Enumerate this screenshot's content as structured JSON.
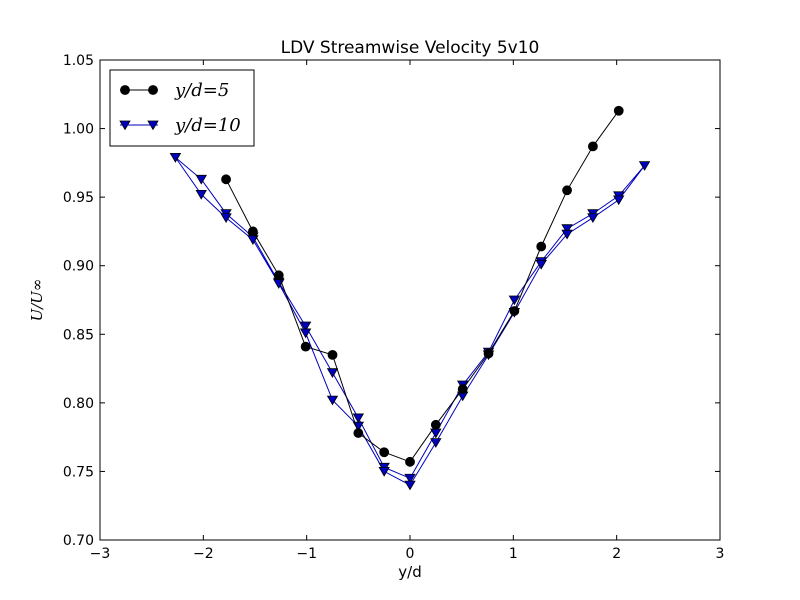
{
  "chart_data": {
    "type": "line",
    "title": "LDV Streamwise Velocity 5v10",
    "xlabel": "y/d",
    "ylabel": "U/U∞",
    "xlim": [
      -3,
      3
    ],
    "ylim": [
      0.7,
      1.05
    ],
    "xticks": [
      -3,
      -2,
      -1,
      0,
      1,
      2,
      3
    ],
    "xtick_labels": [
      "−3",
      "−2",
      "−1",
      "0",
      "1",
      "2",
      "3"
    ],
    "yticks": [
      0.7,
      0.75,
      0.8,
      0.85,
      0.9,
      0.95,
      1.0,
      1.05
    ],
    "ytick_labels": [
      "0.70",
      "0.75",
      "0.80",
      "0.85",
      "0.90",
      "0.95",
      "1.00",
      "1.05"
    ],
    "grid": false,
    "legend_position": "top-left",
    "series": [
      {
        "name": "y/d=5",
        "color": "#000000",
        "marker": "circle",
        "points": [
          [
            -1.78,
            0.963
          ],
          [
            -1.52,
            0.925
          ],
          [
            -1.27,
            0.893
          ],
          [
            -1.01,
            0.841
          ],
          [
            -0.75,
            0.835
          ],
          [
            -0.5,
            0.778
          ],
          [
            -0.25,
            0.764
          ],
          [
            0.0,
            0.757
          ],
          [
            0.25,
            0.784
          ],
          [
            0.51,
            0.81
          ],
          [
            0.76,
            0.836
          ],
          [
            1.01,
            0.867
          ],
          [
            1.27,
            0.914
          ],
          [
            1.52,
            0.955
          ],
          [
            1.77,
            0.987
          ],
          [
            2.02,
            1.013
          ]
        ]
      },
      {
        "name": "y/d=10",
        "color": "#0000bf",
        "marker": "triangle-down",
        "points": [
          [
            -2.27,
            0.979
          ],
          [
            -2.02,
            0.963
          ],
          [
            -1.78,
            0.938
          ],
          [
            -1.52,
            0.921
          ],
          [
            -1.27,
            0.888
          ],
          [
            -1.01,
            0.856
          ],
          [
            -0.75,
            0.822
          ],
          [
            -0.5,
            0.789
          ],
          [
            -0.25,
            0.753
          ],
          [
            0.0,
            0.745
          ],
          [
            0.25,
            0.778
          ],
          [
            0.51,
            0.813
          ],
          [
            0.76,
            0.837
          ],
          [
            1.01,
            0.875
          ],
          [
            1.27,
            0.903
          ],
          [
            1.52,
            0.927
          ],
          [
            1.77,
            0.938
          ],
          [
            2.02,
            0.951
          ],
          [
            2.27,
            0.973
          ],
          [
            2.02,
            0.948
          ],
          [
            1.77,
            0.935
          ],
          [
            1.52,
            0.923
          ],
          [
            1.27,
            0.901
          ],
          [
            1.01,
            0.866
          ],
          [
            0.76,
            0.835
          ],
          [
            0.51,
            0.805
          ],
          [
            0.25,
            0.771
          ],
          [
            0.0,
            0.74
          ],
          [
            -0.25,
            0.75
          ],
          [
            -0.5,
            0.783
          ],
          [
            -0.75,
            0.802
          ],
          [
            -1.01,
            0.851
          ],
          [
            -1.27,
            0.887
          ],
          [
            -1.52,
            0.919
          ],
          [
            -1.78,
            0.935
          ],
          [
            -2.02,
            0.952
          ],
          [
            -2.27,
            0.979
          ]
        ]
      }
    ]
  }
}
